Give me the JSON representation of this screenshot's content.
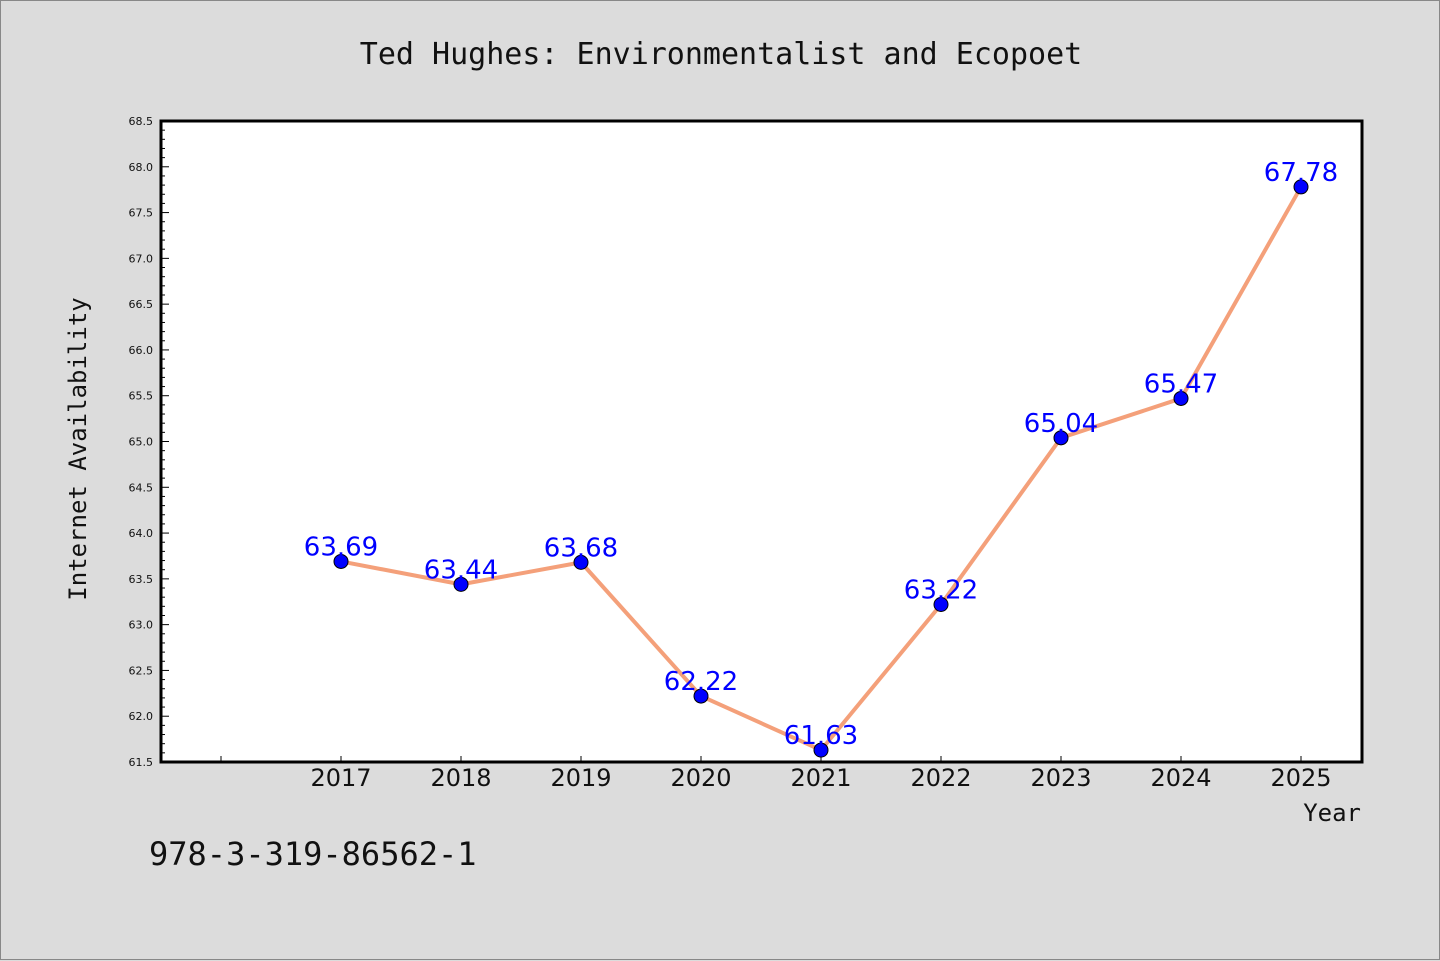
{
  "chart_data": {
    "type": "line",
    "title": "Ted Hughes: Environmentalist and Ecopoet",
    "xlabel": "Year",
    "ylabel": "Internet Availability",
    "categories": [
      "2017",
      "2018",
      "2019",
      "2020",
      "2021",
      "2022",
      "2023",
      "2024",
      "2025"
    ],
    "series": [
      {
        "values": [
          63.69,
          63.44,
          63.68,
          62.22,
          61.63,
          63.22,
          65.04,
          65.47,
          67.78
        ],
        "data_labels": [
          "63.69",
          "63.44",
          "63.68",
          "62.22",
          "61.63",
          "63.22",
          "65.04",
          "65.47",
          "67.78"
        ],
        "line_color": "#f4a07a",
        "marker_color": "#0000ff"
      }
    ],
    "ylim": [
      61.5,
      68.5
    ],
    "yticks": [
      "61.5",
      "62.0",
      "62.5",
      "63.0",
      "63.5",
      "64.0",
      "64.5",
      "65.0",
      "65.5",
      "66.0",
      "66.5",
      "67.0",
      "67.5",
      "68.0",
      "68.5"
    ],
    "grid": false,
    "label_color": "#0000ff"
  },
  "footer": {
    "isbn": "978-3-319-86562-1"
  },
  "colors": {
    "background": "#dcdcdc",
    "plot_background": "#ffffff"
  }
}
